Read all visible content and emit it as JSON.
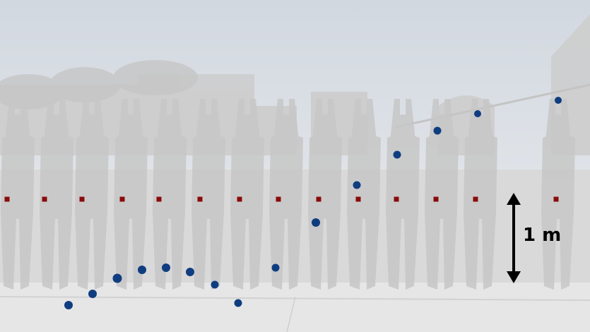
{
  "scale_bar": {
    "label": "1 m",
    "length_m": 1
  },
  "colors": {
    "tracked_point": "#0f3d80",
    "reference_marker": "#8b0a0a",
    "scale_arrow": "#000000",
    "sky": "#d3d9e1",
    "ground": "#e5e5e5",
    "figure": "#c9c9c9"
  }
}
